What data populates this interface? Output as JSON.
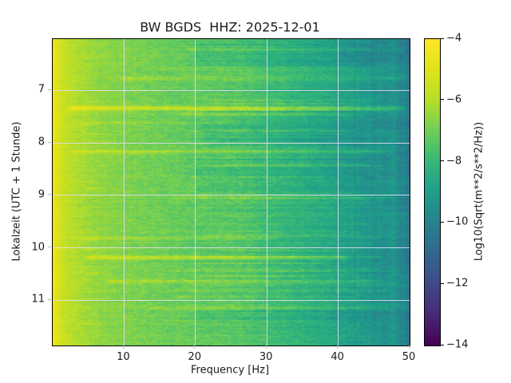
{
  "chart_data": {
    "type": "heatmap",
    "subtype": "seismic-spectrogram",
    "title": "BW BGDS  HHZ: 2025-12-01",
    "xlabel": "Frequency [Hz]",
    "ylabel": "Lokalzeit (UTC + 1 Stunde)",
    "x_range": [
      0,
      50
    ],
    "y_range_hours": [
      6.02,
      11.86
    ],
    "x_ticks": [
      10,
      20,
      30,
      40,
      50
    ],
    "y_ticks": [
      7,
      8,
      9,
      10,
      11
    ],
    "grid": true,
    "colormap": "viridis",
    "colormap_stops": [
      "#440154",
      "#482878",
      "#3e4989",
      "#31688e",
      "#26828e",
      "#1f9e89",
      "#35b779",
      "#6ece58",
      "#b5de2b",
      "#dfe318",
      "#fde725"
    ],
    "colorbar": {
      "label": "Log10(Sqrt(m**2/s**2/Hz))",
      "ticks": [
        -4,
        -6,
        -8,
        -10,
        -12,
        -14
      ],
      "range": [
        -14,
        -4
      ]
    },
    "background_profile": [
      [
        0,
        -4.7
      ],
      [
        0.5,
        -4.85
      ],
      [
        1.2,
        -5.4
      ],
      [
        2,
        -5.75
      ],
      [
        3.5,
        -6.1
      ],
      [
        6,
        -6.45
      ],
      [
        9,
        -6.7
      ],
      [
        13,
        -6.9
      ],
      [
        17,
        -7.1
      ],
      [
        21,
        -7.3
      ],
      [
        26,
        -7.45
      ],
      [
        30,
        -7.8
      ],
      [
        34,
        -8.15
      ],
      [
        38,
        -8.5
      ],
      [
        41,
        -8.85
      ],
      [
        44,
        -9.2
      ],
      [
        46.5,
        -9.45
      ],
      [
        48.5,
        -9.7
      ],
      [
        50,
        -10.15
      ]
    ],
    "events": [
      {
        "hour": 6.2,
        "amp": 0.4,
        "f": [
          18,
          46
        ],
        "sigma": 0.6
      },
      {
        "hour": 6.58,
        "amp": 0.45,
        "f": [
          14,
          47
        ],
        "sigma": 0.6
      },
      {
        "hour": 6.76,
        "amp": 0.65,
        "f": [
          9,
          50
        ],
        "sigma": 0.7
      },
      {
        "hour": 7.32,
        "amp": 1.55,
        "f": [
          1.5,
          50
        ],
        "sigma": 0.9
      },
      {
        "hour": 7.43,
        "amp": 0.45,
        "f": [
          16,
          42
        ],
        "sigma": 0.7
      },
      {
        "hour": 7.6,
        "amp": 0.4,
        "f": [
          2,
          26
        ],
        "sigma": 0.6
      },
      {
        "hour": 8.15,
        "amp": 0.95,
        "f": [
          2,
          48
        ],
        "sigma": 0.8
      },
      {
        "hour": 8.25,
        "amp": 0.4,
        "f": [
          18,
          40
        ],
        "sigma": 0.6
      },
      {
        "hour": 9.03,
        "amp": 0.65,
        "f": [
          16,
          48
        ],
        "sigma": 0.7
      },
      {
        "hour": 9.27,
        "amp": 0.35,
        "f": [
          18,
          42
        ],
        "sigma": 0.6
      },
      {
        "hour": 9.8,
        "amp": 0.55,
        "f": [
          2,
          32
        ],
        "sigma": 0.7
      },
      {
        "hour": 10.17,
        "amp": 1.2,
        "f": [
          4,
          42
        ],
        "sigma": 0.9
      },
      {
        "hour": 10.41,
        "amp": 0.5,
        "f": [
          16,
          46
        ],
        "sigma": 0.6
      },
      {
        "hour": 10.62,
        "amp": 0.7,
        "f": [
          7,
          46
        ],
        "sigma": 0.7
      },
      {
        "hour": 10.8,
        "amp": 0.55,
        "f": [
          16,
          48
        ],
        "sigma": 0.6
      },
      {
        "hour": 10.91,
        "amp": 0.55,
        "f": [
          16,
          48
        ],
        "sigma": 0.6
      },
      {
        "hour": 11.14,
        "amp": 0.6,
        "f": [
          12,
          48
        ],
        "sigma": 0.7
      },
      {
        "hour": 11.37,
        "amp": 0.35,
        "f": [
          16,
          40
        ],
        "sigma": 0.6
      }
    ],
    "quiet_bands": [
      {
        "hours": [
          6.1,
          6.55
        ],
        "amp": -0.28,
        "f": [
          20,
          45
        ]
      },
      {
        "hours": [
          6.05,
          6.45
        ],
        "amp": -0.22,
        "f": [
          40,
          50
        ]
      },
      {
        "hours": [
          7.65,
          8.08
        ],
        "amp": -0.28,
        "f": [
          21,
          44
        ]
      },
      {
        "hours": [
          8.45,
          8.95
        ],
        "amp": -0.25,
        "f": [
          20,
          45
        ]
      }
    ]
  }
}
